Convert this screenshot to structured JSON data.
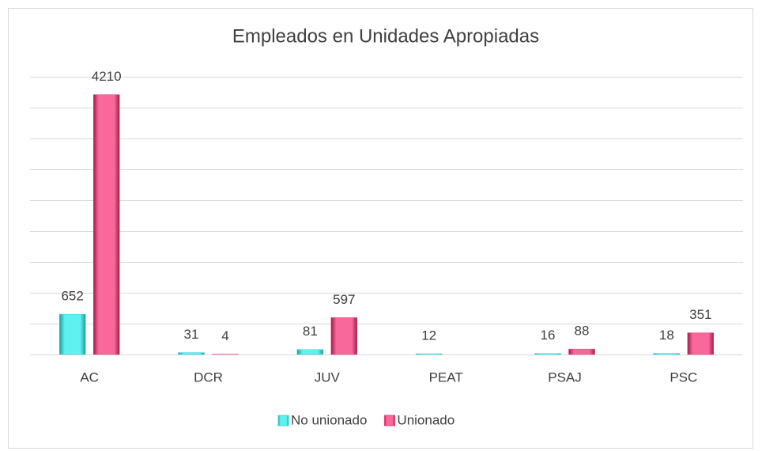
{
  "chart_data": {
    "type": "bar",
    "title": "Empleados en Unidades Apropiadas",
    "categories": [
      "AC",
      "DCR",
      "JUV",
      "PEAT",
      "PSAJ",
      "PSC"
    ],
    "series": [
      {
        "name": "No unionado",
        "color": "#3fd6d6",
        "values": [
          652,
          31,
          81,
          12,
          16,
          18
        ]
      },
      {
        "name": "Unionado",
        "color": "#e6437a",
        "values": [
          4210,
          4,
          597,
          null,
          88,
          351
        ]
      }
    ],
    "ylim": [
      0,
      4500
    ],
    "yticks": [
      0,
      500,
      1000,
      1500,
      2000,
      2500,
      3000,
      3500,
      4000,
      4500
    ],
    "grid": true,
    "legend": "bottom"
  }
}
